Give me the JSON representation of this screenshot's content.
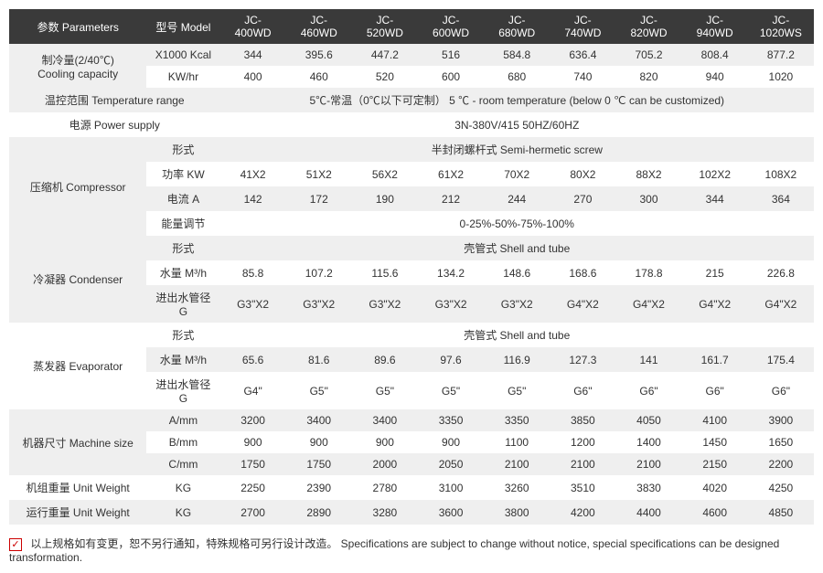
{
  "header": {
    "param_label": "参数 Parameters",
    "model_label": "型号 Model",
    "models": [
      "JC-400WD",
      "JC-460WD",
      "JC-520WD",
      "JC-600WD",
      "JC-680WD",
      "JC-740WD",
      "JC-820WD",
      "JC-940WD",
      "JC-1020WS"
    ]
  },
  "groups": [
    {
      "label": "制冷量(2/40℃)\nCooling capacity",
      "rows": [
        {
          "sub": "X1000 Kcal",
          "vals": [
            "344",
            "395.6",
            "447.2",
            "516",
            "584.8",
            "636.4",
            "705.2",
            "808.4",
            "877.2"
          ]
        },
        {
          "sub": "KW/hr",
          "vals": [
            "400",
            "460",
            "520",
            "600",
            "680",
            "740",
            "820",
            "940",
            "1020"
          ]
        }
      ]
    },
    {
      "label": "温控范围 Temperature range",
      "rows": [
        {
          "sub": "",
          "span": "5℃-常温（0℃以下可定制） 5 ℃ - room temperature (below 0 ℃ can be customized)"
        }
      ]
    },
    {
      "label": "电源 Power supply",
      "rows": [
        {
          "sub": "",
          "span": "3N-380V/415   50HZ/60HZ"
        }
      ]
    },
    {
      "label": "压缩机 Compressor",
      "rows": [
        {
          "sub": "形式",
          "span": "半封闭螺杆式 Semi-hermetic screw"
        },
        {
          "sub": "功率 KW",
          "vals": [
            "41X2",
            "51X2",
            "56X2",
            "61X2",
            "70X2",
            "80X2",
            "88X2",
            "102X2",
            "108X2"
          ]
        },
        {
          "sub": "电流 A",
          "vals": [
            "142",
            "172",
            "190",
            "212",
            "244",
            "270",
            "300",
            "344",
            "364"
          ]
        },
        {
          "sub": "能量调节",
          "span": "0-25%-50%-75%-100%"
        }
      ]
    },
    {
      "label": "冷凝器 Condenser",
      "rows": [
        {
          "sub": "形式",
          "span": "壳管式 Shell and tube"
        },
        {
          "sub": "水量 M³/h",
          "vals": [
            "85.8",
            "107.2",
            "115.6",
            "134.2",
            "148.6",
            "168.6",
            "178.8",
            "215",
            "226.8"
          ]
        },
        {
          "sub": "进出水管径 G",
          "vals": [
            "G3\"X2",
            "G3\"X2",
            "G3\"X2",
            "G3\"X2",
            "G3\"X2",
            "G4\"X2",
            "G4\"X2",
            "G4\"X2",
            "G4\"X2"
          ]
        }
      ]
    },
    {
      "label": "蒸发器 Evaporator",
      "rows": [
        {
          "sub": "形式",
          "span": "壳管式 Shell and tube"
        },
        {
          "sub": "水量 M³/h",
          "vals": [
            "65.6",
            "81.6",
            "89.6",
            "97.6",
            "116.9",
            "127.3",
            "141",
            "161.7",
            "175.4"
          ]
        },
        {
          "sub": "进出水管径 G",
          "vals": [
            "G4\"",
            "G5\"",
            "G5\"",
            "G5\"",
            "G5\"",
            "G6\"",
            "G6\"",
            "G6\"",
            "G6\""
          ]
        }
      ]
    },
    {
      "label": "机器尺寸 Machine size",
      "rows": [
        {
          "sub": "A/mm",
          "vals": [
            "3200",
            "3400",
            "3400",
            "3350",
            "3350",
            "3850",
            "4050",
            "4100",
            "3900"
          ]
        },
        {
          "sub": "B/mm",
          "vals": [
            "900",
            "900",
            "900",
            "900",
            "1100",
            "1200",
            "1400",
            "1450",
            "1650"
          ]
        },
        {
          "sub": "C/mm",
          "vals": [
            "1750",
            "1750",
            "2000",
            "2050",
            "2100",
            "2100",
            "2100",
            "2150",
            "2200"
          ]
        }
      ]
    },
    {
      "label": "机组重量 Unit Weight",
      "rows": [
        {
          "sub": "KG",
          "vals": [
            "2250",
            "2390",
            "2780",
            "3100",
            "3260",
            "3510",
            "3830",
            "4020",
            "4250"
          ]
        }
      ]
    },
    {
      "label": "运行重量 Unit Weight",
      "rows": [
        {
          "sub": "KG",
          "vals": [
            "2700",
            "2890",
            "3280",
            "3600",
            "3800",
            "4200",
            "4400",
            "4600",
            "4850"
          ]
        }
      ]
    }
  ],
  "footnote": "以上规格如有变更，恕不另行通知，特殊规格可另行设计改造。    Specifications are subject to change without notice, special specifications can be designed transformation.",
  "colors": {
    "header_bg": "#3a3a3a",
    "header_fg": "#ffffff",
    "row_even": "#efefef",
    "row_odd": "#ffffff",
    "check": "#c00000"
  }
}
